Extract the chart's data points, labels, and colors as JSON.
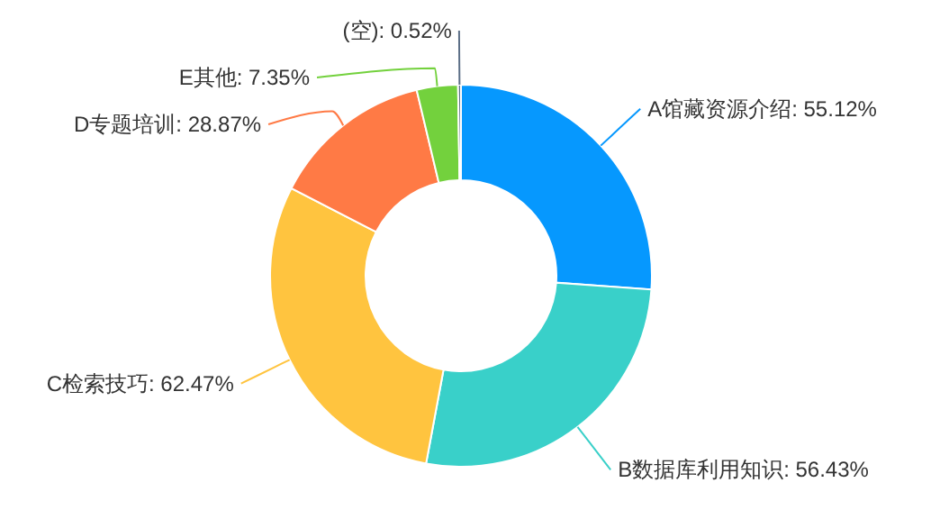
{
  "chart_data": {
    "type": "donut",
    "categories": [
      "A馆藏资源介绍",
      "B数据库利用知识",
      "C检索技巧",
      "D专题培训",
      "E其他",
      "(空)"
    ],
    "values": [
      55.12,
      56.43,
      62.47,
      28.87,
      7.35,
      0.52
    ],
    "value_labels": [
      ": 55.12%",
      ": 56.43%",
      ": 62.47%",
      ": 28.87%",
      ": 7.35%",
      ": 0.52%"
    ],
    "colors": [
      "#0698fe",
      "#39d0c9",
      "#ffc43f",
      "#ff7a45",
      "#73d13d",
      "#5b6e86"
    ]
  }
}
